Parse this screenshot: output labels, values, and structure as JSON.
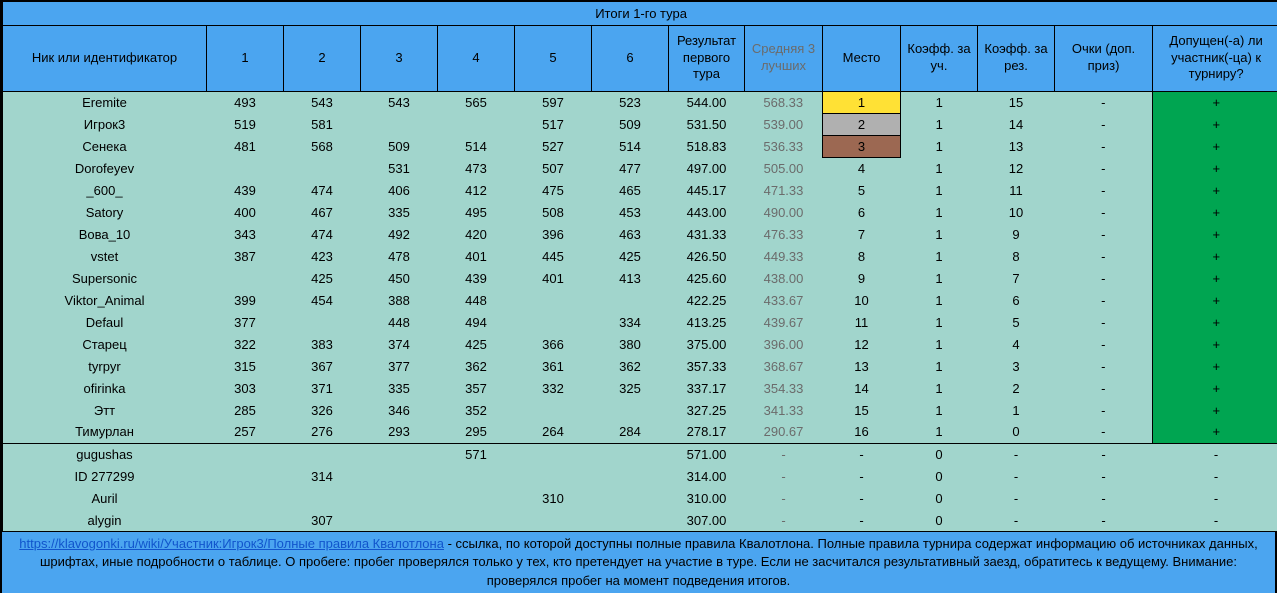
{
  "title": "Итоги 1-го тура",
  "columns": [
    "Ник или идентификатор",
    "1",
    "2",
    "3",
    "4",
    "5",
    "6",
    "Результат первого тура",
    "Средняя 3 лучших",
    "Место",
    "Коэфф. за уч.",
    "Коэфф. за рез.",
    "Очки (доп. приз)",
    "Допущен(-а) ли участник(-ца) к турниру?"
  ],
  "rows": [
    {
      "name": "Eremite",
      "scores": [
        "493",
        "543",
        "543",
        "565",
        "597",
        "523"
      ],
      "result": "544.00",
      "avg": "568.33",
      "place": "1",
      "medal": "gold",
      "coef_participation": "1",
      "coef_result": "15",
      "points": "-",
      "admitted": "+",
      "qualified": true
    },
    {
      "name": "Игрок3",
      "scores": [
        "519",
        "581",
        "",
        "",
        "517",
        "509"
      ],
      "result": "531.50",
      "avg": "539.00",
      "place": "2",
      "medal": "silver",
      "coef_participation": "1",
      "coef_result": "14",
      "points": "-",
      "admitted": "+",
      "qualified": true
    },
    {
      "name": "Сенека",
      "scores": [
        "481",
        "568",
        "509",
        "514",
        "527",
        "514"
      ],
      "result": "518.83",
      "avg": "536.33",
      "place": "3",
      "medal": "bronze",
      "coef_participation": "1",
      "coef_result": "13",
      "points": "-",
      "admitted": "+",
      "qualified": true
    },
    {
      "name": "Dorofeyev",
      "scores": [
        "",
        "",
        "531",
        "473",
        "507",
        "477"
      ],
      "result": "497.00",
      "avg": "505.00",
      "place": "4",
      "medal": null,
      "coef_participation": "1",
      "coef_result": "12",
      "points": "-",
      "admitted": "+",
      "qualified": true
    },
    {
      "name": "_600_",
      "scores": [
        "439",
        "474",
        "406",
        "412",
        "475",
        "465"
      ],
      "result": "445.17",
      "avg": "471.33",
      "place": "5",
      "medal": null,
      "coef_participation": "1",
      "coef_result": "11",
      "points": "-",
      "admitted": "+",
      "qualified": true
    },
    {
      "name": "Satory",
      "scores": [
        "400",
        "467",
        "335",
        "495",
        "508",
        "453"
      ],
      "result": "443.00",
      "avg": "490.00",
      "place": "6",
      "medal": null,
      "coef_participation": "1",
      "coef_result": "10",
      "points": "-",
      "admitted": "+",
      "qualified": true
    },
    {
      "name": "Вова_10",
      "scores": [
        "343",
        "474",
        "492",
        "420",
        "396",
        "463"
      ],
      "result": "431.33",
      "avg": "476.33",
      "place": "7",
      "medal": null,
      "coef_participation": "1",
      "coef_result": "9",
      "points": "-",
      "admitted": "+",
      "qualified": true
    },
    {
      "name": "vstet",
      "scores": [
        "387",
        "423",
        "478",
        "401",
        "445",
        "425"
      ],
      "result": "426.50",
      "avg": "449.33",
      "place": "8",
      "medal": null,
      "coef_participation": "1",
      "coef_result": "8",
      "points": "-",
      "admitted": "+",
      "qualified": true
    },
    {
      "name": "Supersonic",
      "scores": [
        "",
        "425",
        "450",
        "439",
        "401",
        "413"
      ],
      "result": "425.60",
      "avg": "438.00",
      "place": "9",
      "medal": null,
      "coef_participation": "1",
      "coef_result": "7",
      "points": "-",
      "admitted": "+",
      "qualified": true
    },
    {
      "name": "Viktor_Animal",
      "scores": [
        "399",
        "454",
        "388",
        "448",
        "",
        ""
      ],
      "result": "422.25",
      "avg": "433.67",
      "place": "10",
      "medal": null,
      "coef_participation": "1",
      "coef_result": "6",
      "points": "-",
      "admitted": "+",
      "qualified": true
    },
    {
      "name": "Defaul",
      "scores": [
        "377",
        "",
        "448",
        "494",
        "",
        "334"
      ],
      "result": "413.25",
      "avg": "439.67",
      "place": "11",
      "medal": null,
      "coef_participation": "1",
      "coef_result": "5",
      "points": "-",
      "admitted": "+",
      "qualified": true
    },
    {
      "name": "Старец",
      "scores": [
        "322",
        "383",
        "374",
        "425",
        "366",
        "380"
      ],
      "result": "375.00",
      "avg": "396.00",
      "place": "12",
      "medal": null,
      "coef_participation": "1",
      "coef_result": "4",
      "points": "-",
      "admitted": "+",
      "qualified": true
    },
    {
      "name": "tyrpyr",
      "scores": [
        "315",
        "367",
        "377",
        "362",
        "361",
        "362"
      ],
      "result": "357.33",
      "avg": "368.67",
      "place": "13",
      "medal": null,
      "coef_participation": "1",
      "coef_result": "3",
      "points": "-",
      "admitted": "+",
      "qualified": true
    },
    {
      "name": "ofirinka",
      "scores": [
        "303",
        "371",
        "335",
        "357",
        "332",
        "325"
      ],
      "result": "337.17",
      "avg": "354.33",
      "place": "14",
      "medal": null,
      "coef_participation": "1",
      "coef_result": "2",
      "points": "-",
      "admitted": "+",
      "qualified": true
    },
    {
      "name": "Этт",
      "scores": [
        "285",
        "326",
        "346",
        "352",
        "",
        ""
      ],
      "result": "327.25",
      "avg": "341.33",
      "place": "15",
      "medal": null,
      "coef_participation": "1",
      "coef_result": "1",
      "points": "-",
      "admitted": "+",
      "qualified": true
    },
    {
      "name": "Тимурлан",
      "scores": [
        "257",
        "276",
        "293",
        "295",
        "264",
        "284"
      ],
      "result": "278.17",
      "avg": "290.67",
      "place": "16",
      "medal": null,
      "coef_participation": "1",
      "coef_result": "0",
      "points": "-",
      "admitted": "+",
      "qualified": true
    },
    {
      "name": "gugushas",
      "scores": [
        "",
        "",
        "",
        "571",
        "",
        ""
      ],
      "result": "571.00",
      "avg": "-",
      "place": "-",
      "medal": null,
      "coef_participation": "0",
      "coef_result": "-",
      "points": "-",
      "admitted": "-",
      "qualified": false
    },
    {
      "name": "ID 277299",
      "scores": [
        "",
        "314",
        "",
        "",
        "",
        ""
      ],
      "result": "314.00",
      "avg": "-",
      "place": "-",
      "medal": null,
      "coef_participation": "0",
      "coef_result": "-",
      "points": "-",
      "admitted": "-",
      "qualified": false
    },
    {
      "name": "Auril",
      "scores": [
        "",
        "",
        "",
        "",
        "310",
        ""
      ],
      "result": "310.00",
      "avg": "-",
      "place": "-",
      "medal": null,
      "coef_participation": "0",
      "coef_result": "-",
      "points": "-",
      "admitted": "-",
      "qualified": false
    },
    {
      "name": "alygin",
      "scores": [
        "",
        "307",
        "",
        "",
        "",
        ""
      ],
      "result": "307.00",
      "avg": "-",
      "place": "-",
      "medal": null,
      "coef_participation": "0",
      "coef_result": "-",
      "points": "-",
      "admitted": "-",
      "qualified": false
    }
  ],
  "footer": {
    "link_text": "https://klavogonki.ru/wiki/Участник:Игрок3/Полные правила Квалотлона",
    "text": " - ссылка, по которой доступны полные правила Квалотлона. Полные правила турнира содержат информацию об источниках данных, шрифтах, иные подробности о таблице. О пробеге: пробег проверялся только у тех, кто претендует на участие в туре. Если не засчитался результативный заезд, обратитесь к ведущему. Внимание: проверялся пробег на момент подведения итогов."
  },
  "colors": {
    "header_bg": "#4BA5F0",
    "body_bg": "#A1D5CC",
    "qualified_bg": "#00A551",
    "gold": "#FFE135",
    "silver": "#B0B0B0",
    "bronze": "#9C6852",
    "muted_text": "#6B6B6B",
    "link": "#1155CC"
  }
}
